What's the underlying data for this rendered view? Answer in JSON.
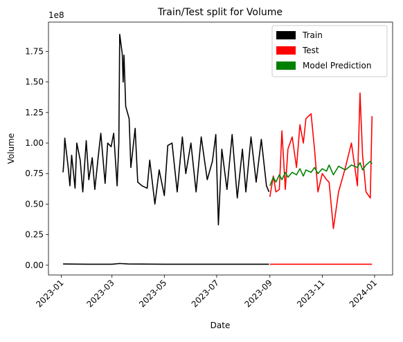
{
  "chart_data": {
    "type": "line",
    "title": "Train/Test split for Volume",
    "xlabel": "Date",
    "ylabel": "Volume",
    "y_offset_label": "1e8",
    "xlim": [
      "2022-12-17",
      "2024-01-22"
    ],
    "xticks": [
      "2023-01",
      "2023-03",
      "2023-05",
      "2023-07",
      "2023-09",
      "2023-11",
      "2024-01"
    ],
    "ylim": [
      -0.08,
      1.99
    ],
    "yticks": [
      {
        "value": 0,
        "label": "0.00"
      },
      0.25,
      {
        "value": 0.5,
        "label": "0.50"
      },
      0.75,
      {
        "value": 1,
        "label": "1.00"
      },
      1.25,
      {
        "value": 1.5,
        "label": "1.50"
      },
      1.75
    ],
    "legend": "upper right",
    "series": [
      {
        "name": "Train",
        "color": "#000000",
        "x": [
          "2023-01-03",
          "2023-01-04",
          "2023-01-05",
          "2023-01-09",
          "2023-01-11",
          "2023-01-13",
          "2023-01-17",
          "2023-01-19",
          "2023-01-23",
          "2023-01-26",
          "2023-01-30",
          "2023-02-02",
          "2023-02-06",
          "2023-02-09",
          "2023-02-13",
          "2023-02-16",
          "2023-02-21",
          "2023-02-24",
          "2023-02-28",
          "2023-03-03",
          "2023-03-07",
          "2023-03-09",
          "2023-03-10",
          "2023-03-13",
          "2023-03-14",
          "2023-03-15",
          "2023-03-17",
          "2023-03-21",
          "2023-03-23",
          "2023-03-28",
          "2023-03-31",
          "2023-04-05",
          "2023-04-11",
          "2023-04-14",
          "2023-04-20",
          "2023-04-25",
          "2023-05-01",
          "2023-05-05",
          "2023-05-10",
          "2023-05-16",
          "2023-05-22",
          "2023-05-26",
          "2023-06-01",
          "2023-06-07",
          "2023-06-13",
          "2023-06-20",
          "2023-06-26",
          "2023-06-30",
          "2023-07-03",
          "2023-07-07",
          "2023-07-13",
          "2023-07-19",
          "2023-07-25",
          "2023-07-31",
          "2023-08-04",
          "2023-08-10",
          "2023-08-16",
          "2023-08-22",
          "2023-08-28",
          "2023-08-31"
        ],
        "values": [
          0.76,
          0.86,
          1.04,
          0.8,
          0.65,
          0.9,
          0.63,
          1.0,
          0.86,
          0.6,
          1.02,
          0.7,
          0.88,
          0.62,
          0.89,
          1.08,
          0.67,
          1.0,
          0.97,
          1.08,
          0.65,
          1.0,
          1.89,
          1.73,
          1.5,
          1.72,
          1.3,
          1.2,
          0.8,
          1.12,
          0.68,
          0.65,
          0.63,
          0.86,
          0.5,
          0.78,
          0.57,
          0.98,
          1.0,
          0.6,
          1.05,
          0.75,
          1.0,
          0.6,
          1.05,
          0.7,
          0.85,
          1.07,
          0.33,
          0.95,
          0.62,
          1.07,
          0.55,
          0.95,
          0.6,
          1.05,
          0.68,
          1.03,
          0.65,
          0.6
        ]
      },
      {
        "name": "Test",
        "color": "#ff0000",
        "x": [
          "2023-09-01",
          "2023-09-05",
          "2023-09-08",
          "2023-09-12",
          "2023-09-15",
          "2023-09-19",
          "2023-09-22",
          "2023-09-27",
          "2023-10-02",
          "2023-10-06",
          "2023-10-10",
          "2023-10-13",
          "2023-10-19",
          "2023-10-23",
          "2023-10-27",
          "2023-11-01",
          "2023-11-06",
          "2023-11-09",
          "2023-11-14",
          "2023-11-20",
          "2023-11-28",
          "2023-12-05",
          "2023-12-12",
          "2023-12-15",
          "2023-12-18",
          "2023-12-22",
          "2023-12-27",
          "2023-12-29"
        ],
        "values": [
          0.56,
          0.73,
          0.6,
          0.62,
          1.1,
          0.62,
          0.95,
          1.05,
          0.8,
          1.15,
          1.0,
          1.2,
          1.24,
          0.95,
          0.6,
          0.75,
          0.7,
          0.68,
          0.3,
          0.6,
          0.8,
          1.0,
          0.65,
          1.41,
          0.9,
          0.6,
          0.55,
          1.22
        ]
      },
      {
        "name": "Model Prediction",
        "color": "#008000",
        "x": [
          "2023-09-01",
          "2023-09-05",
          "2023-09-08",
          "2023-09-12",
          "2023-09-15",
          "2023-09-19",
          "2023-09-22",
          "2023-09-27",
          "2023-10-02",
          "2023-10-06",
          "2023-10-10",
          "2023-10-13",
          "2023-10-19",
          "2023-10-23",
          "2023-10-27",
          "2023-11-01",
          "2023-11-06",
          "2023-11-09",
          "2023-11-14",
          "2023-11-20",
          "2023-11-28",
          "2023-12-05",
          "2023-12-12",
          "2023-12-15",
          "2023-12-18",
          "2023-12-22",
          "2023-12-27",
          "2023-12-29"
        ],
        "values": [
          0.65,
          0.72,
          0.68,
          0.74,
          0.7,
          0.76,
          0.72,
          0.76,
          0.74,
          0.79,
          0.73,
          0.78,
          0.76,
          0.8,
          0.75,
          0.79,
          0.77,
          0.82,
          0.74,
          0.81,
          0.78,
          0.82,
          0.8,
          0.84,
          0.78,
          0.82,
          0.85,
          0.83
        ]
      },
      {
        "color": "#000000",
        "x": [
          "2023-01-03",
          "2023-02-01",
          "2023-03-01",
          "2023-03-10",
          "2023-03-20",
          "2023-05-01",
          "2023-07-01",
          "2023-08-31"
        ],
        "values": [
          0.01,
          0.008,
          0.008,
          0.014,
          0.01,
          0.008,
          0.008,
          0.008
        ]
      },
      {
        "color": "#ff0000",
        "x": [
          "2023-09-01",
          "2023-10-01",
          "2023-11-01",
          "2023-12-01",
          "2023-12-29"
        ],
        "values": [
          0.008,
          0.008,
          0.008,
          0.008,
          0.008
        ]
      }
    ]
  }
}
